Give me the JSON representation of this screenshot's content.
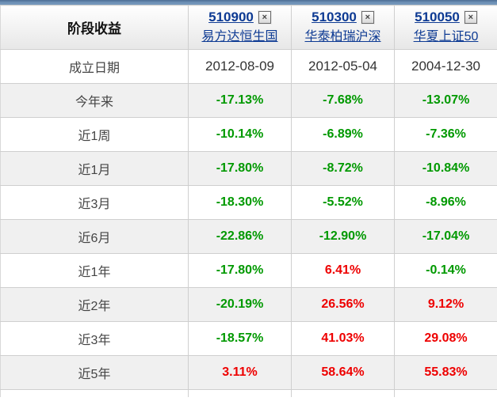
{
  "table": {
    "corner_label": "阶段收益",
    "close_icon_glyph": "×",
    "funds": [
      {
        "code": "510900",
        "name": "易方达恒生国"
      },
      {
        "code": "510300",
        "name": "华泰柏瑞沪深"
      },
      {
        "code": "510050",
        "name": "华夏上证50"
      }
    ],
    "rows": [
      {
        "label": "成立日期",
        "type": "date",
        "values": [
          "2012-08-09",
          "2012-05-04",
          "2004-12-30"
        ]
      },
      {
        "label": "今年来",
        "type": "return",
        "values": [
          "-17.13%",
          "-7.68%",
          "-13.07%"
        ]
      },
      {
        "label": "近1周",
        "type": "return",
        "values": [
          "-10.14%",
          "-6.89%",
          "-7.36%"
        ]
      },
      {
        "label": "近1月",
        "type": "return",
        "values": [
          "-17.80%",
          "-8.72%",
          "-10.84%"
        ]
      },
      {
        "label": "近3月",
        "type": "return",
        "values": [
          "-18.30%",
          "-5.52%",
          "-8.96%"
        ]
      },
      {
        "label": "近6月",
        "type": "return",
        "values": [
          "-22.86%",
          "-12.90%",
          "-17.04%"
        ]
      },
      {
        "label": "近1年",
        "type": "return",
        "values": [
          "-17.80%",
          "6.41%",
          "-0.14%"
        ]
      },
      {
        "label": "近2年",
        "type": "return",
        "values": [
          "-20.19%",
          "26.56%",
          "9.12%"
        ]
      },
      {
        "label": "近3年",
        "type": "return",
        "values": [
          "-18.57%",
          "41.03%",
          "29.08%"
        ]
      },
      {
        "label": "近5年",
        "type": "return",
        "values": [
          "3.11%",
          "58.64%",
          "55.83%"
        ]
      }
    ],
    "colors": {
      "negative_green": "#009900",
      "positive_red": "#ee0000",
      "link_blue": "#0d3a93",
      "accent_bar": "#7295ba",
      "alt_row_bg": "#f0f0f0"
    }
  }
}
